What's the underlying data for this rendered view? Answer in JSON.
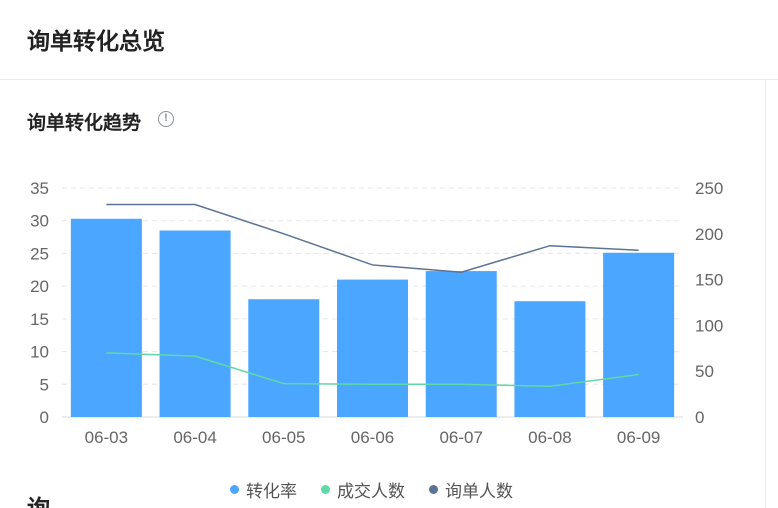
{
  "header": {
    "title": "询单转化总览"
  },
  "section": {
    "title": "询单转化趋势",
    "info_icon": "info-circle-icon"
  },
  "next_section": {
    "title": "询"
  },
  "colors": {
    "bar": "#4aa6ff",
    "deal_line": "#5fd9a6",
    "inquiry_line": "#5c7394",
    "grid": "#e6e6e6",
    "axis_text": "#666666"
  },
  "chart_data": {
    "type": "bar",
    "categories": [
      "06-03",
      "06-04",
      "06-05",
      "06-06",
      "06-07",
      "06-08",
      "06-09"
    ],
    "series": [
      {
        "name": "转化率",
        "type": "bar",
        "axis": "left",
        "values": [
          30.3,
          28.5,
          18.0,
          21.0,
          22.3,
          17.7,
          25.1
        ]
      },
      {
        "name": "成交人数",
        "type": "line",
        "axis": "left",
        "values": [
          9.8,
          9.3,
          5.1,
          5.0,
          5.0,
          4.7,
          6.5
        ]
      },
      {
        "name": "询单人数",
        "type": "line",
        "axis": "right",
        "values": [
          232,
          232,
          200,
          166,
          158,
          187,
          182
        ]
      }
    ],
    "y_left": {
      "min": 0,
      "max": 35,
      "ticks": [
        0,
        5,
        10,
        15,
        20,
        25,
        30,
        35
      ]
    },
    "y_right": {
      "min": 0,
      "max": 250,
      "ticks": [
        0,
        50,
        100,
        150,
        200,
        250
      ]
    },
    "grid": true,
    "legend_position": "bottom-center"
  }
}
